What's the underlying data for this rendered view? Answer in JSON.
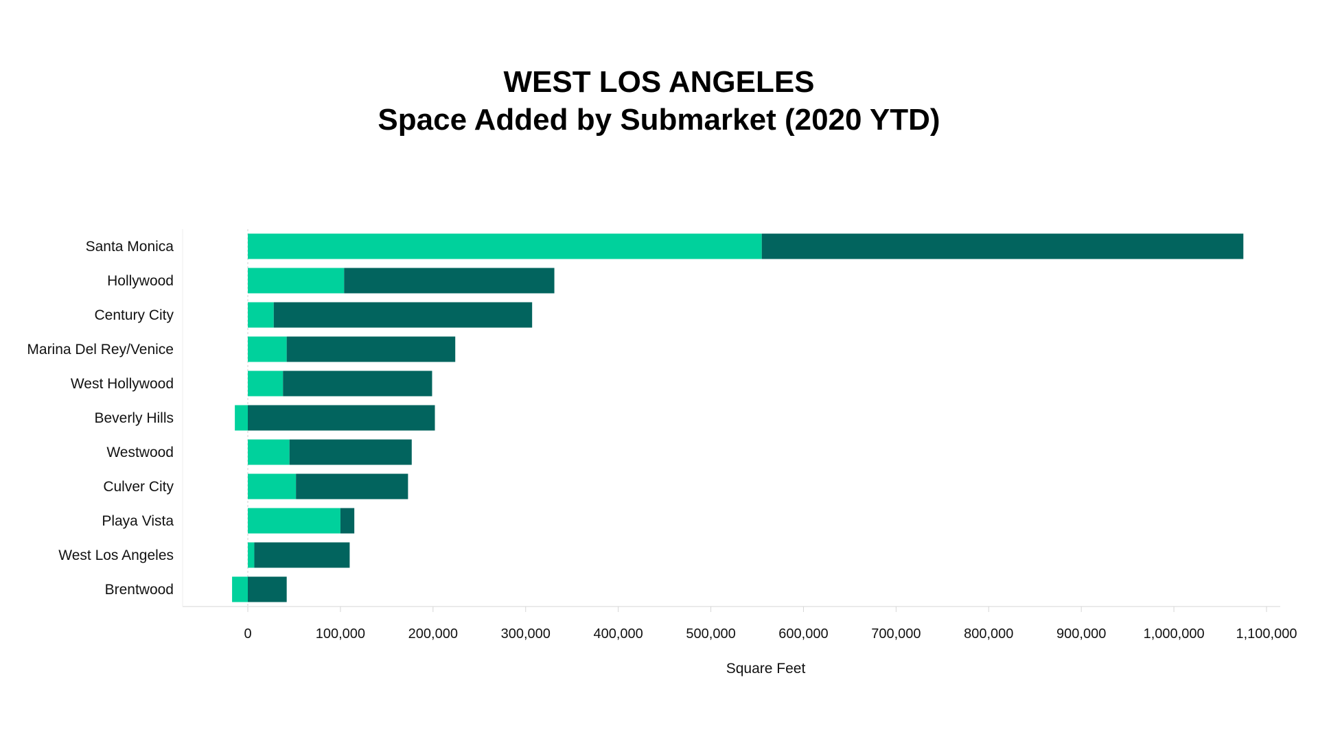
{
  "chart_data": {
    "type": "bar",
    "orientation": "horizontal",
    "stacked": true,
    "title": "WEST LOS ANGELES",
    "subtitle": "Space Added by Submarket (2020 YTD)",
    "xlabel": "Square Feet",
    "ylabel": "",
    "xlim": [
      -70000,
      1100000
    ],
    "xticks": [
      0,
      100000,
      200000,
      300000,
      400000,
      500000,
      600000,
      700000,
      800000,
      900000,
      1000000,
      1100000
    ],
    "xtick_labels": [
      "0",
      "100,000",
      "200,000",
      "300,000",
      "400,000",
      "500,000",
      "600,000",
      "700,000",
      "800,000",
      "900,000",
      "1,000,000",
      "1,100,000"
    ],
    "categories": [
      "Santa Monica",
      "Hollywood",
      "Century City",
      "Marina Del Rey/Venice",
      "West Hollywood",
      "Beverly Hills",
      "Westwood",
      "Culver City",
      "Playa Vista",
      "West Los Angeles",
      "Brentwood"
    ],
    "series": [
      {
        "color": "#00d19c",
        "values": [
          555000,
          104000,
          28000,
          42000,
          38000,
          -14000,
          45000,
          52000,
          100000,
          7000,
          -17000
        ]
      },
      {
        "color": "#02645e",
        "values": [
          520000,
          227000,
          279000,
          182000,
          161000,
          202000,
          132000,
          121000,
          15000,
          103000,
          42000
        ]
      }
    ],
    "grid": false,
    "legend": "none"
  }
}
